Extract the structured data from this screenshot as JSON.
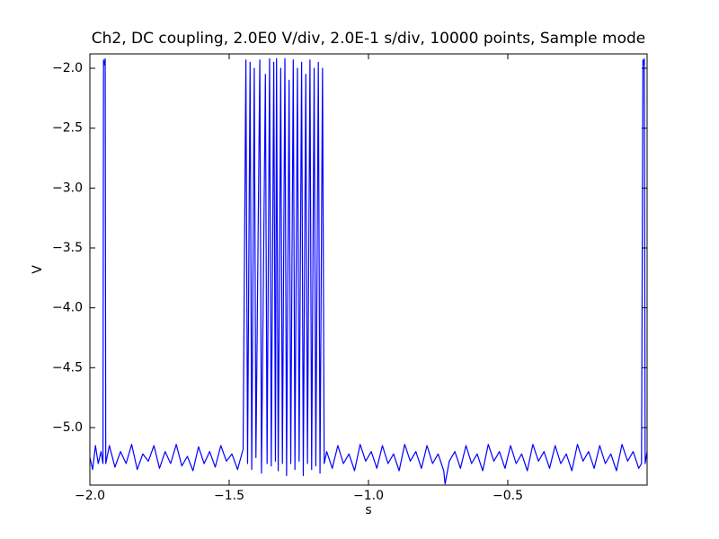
{
  "chart_data": {
    "type": "line",
    "title": "Ch2, DC coupling, 2.0E0 V/div, 2.0E-1 s/div, 10000 points, Sample mode",
    "x_label": "s",
    "y_label": "V",
    "color": "#0000ff",
    "xlim": [
      -2.0,
      0.0
    ],
    "ylim": [
      -5.48,
      -1.88
    ],
    "xticks": [
      {
        "value": -2.0,
        "label": "−2.0"
      },
      {
        "value": -1.5,
        "label": "−1.5"
      },
      {
        "value": -1.0,
        "label": "−1.0"
      },
      {
        "value": -0.5,
        "label": "−0.5"
      }
    ],
    "yticks": [
      {
        "value": -2.0,
        "label": "−2.0"
      },
      {
        "value": -2.5,
        "label": "−2.5"
      },
      {
        "value": -3.0,
        "label": "−3.0"
      },
      {
        "value": -3.5,
        "label": "−3.5"
      },
      {
        "value": -4.0,
        "label": "−4.0"
      },
      {
        "value": -4.5,
        "label": "−4.5"
      },
      {
        "value": -5.0,
        "label": "−5.0"
      }
    ],
    "x": [
      -2.0,
      -1.99,
      -1.98,
      -1.97,
      -1.96,
      -1.953,
      -1.951,
      -1.948,
      -1.945,
      -1.943,
      -1.93,
      -1.91,
      -1.89,
      -1.87,
      -1.85,
      -1.83,
      -1.81,
      -1.79,
      -1.77,
      -1.75,
      -1.73,
      -1.71,
      -1.69,
      -1.67,
      -1.65,
      -1.63,
      -1.61,
      -1.59,
      -1.57,
      -1.55,
      -1.53,
      -1.51,
      -1.49,
      -1.47,
      -1.45,
      -1.44,
      -1.434,
      -1.425,
      -1.419,
      -1.41,
      -1.404,
      -1.39,
      -1.384,
      -1.37,
      -1.364,
      -1.355,
      -1.349,
      -1.34,
      -1.334,
      -1.33,
      -1.324,
      -1.315,
      -1.309,
      -1.3,
      -1.294,
      -1.285,
      -1.279,
      -1.27,
      -1.264,
      -1.255,
      -1.249,
      -1.24,
      -1.234,
      -1.225,
      -1.219,
      -1.21,
      -1.204,
      -1.195,
      -1.189,
      -1.18,
      -1.174,
      -1.165,
      -1.159,
      -1.15,
      -1.13,
      -1.11,
      -1.09,
      -1.07,
      -1.05,
      -1.03,
      -1.01,
      -0.99,
      -0.97,
      -0.95,
      -0.93,
      -0.91,
      -0.89,
      -0.87,
      -0.85,
      -0.83,
      -0.81,
      -0.79,
      -0.77,
      -0.75,
      -0.73,
      -0.725,
      -0.71,
      -0.69,
      -0.67,
      -0.65,
      -0.63,
      -0.61,
      -0.59,
      -0.57,
      -0.55,
      -0.53,
      -0.51,
      -0.49,
      -0.47,
      -0.45,
      -0.43,
      -0.41,
      -0.39,
      -0.37,
      -0.35,
      -0.33,
      -0.31,
      -0.29,
      -0.27,
      -0.25,
      -0.23,
      -0.21,
      -0.19,
      -0.17,
      -0.15,
      -0.13,
      -0.11,
      -0.09,
      -0.07,
      -0.05,
      -0.03,
      -0.02,
      -0.015,
      -0.012,
      -0.01,
      -0.007,
      0.0
    ],
    "values": [
      -5.25,
      -5.35,
      -5.15,
      -5.3,
      -5.2,
      -5.3,
      -1.93,
      -1.97,
      -1.92,
      -5.3,
      -5.15,
      -5.33,
      -5.2,
      -5.3,
      -5.14,
      -5.35,
      -5.22,
      -5.28,
      -5.15,
      -5.34,
      -5.2,
      -5.3,
      -5.14,
      -5.32,
      -5.24,
      -5.36,
      -5.16,
      -5.3,
      -5.2,
      -5.33,
      -5.15,
      -5.28,
      -5.22,
      -5.35,
      -5.18,
      -1.93,
      -5.3,
      -1.95,
      -5.35,
      -2.0,
      -5.25,
      -1.93,
      -5.38,
      -2.05,
      -5.3,
      -1.92,
      -5.32,
      -1.95,
      -5.28,
      -1.92,
      -5.36,
      -2.0,
      -5.3,
      -1.92,
      -5.4,
      -2.1,
      -5.3,
      -1.93,
      -5.35,
      -2.0,
      -5.28,
      -1.95,
      -5.4,
      -2.05,
      -5.3,
      -1.93,
      -5.35,
      -2.0,
      -5.32,
      -1.95,
      -5.38,
      -2.0,
      -5.3,
      -5.2,
      -5.34,
      -5.15,
      -5.3,
      -5.22,
      -5.36,
      -5.14,
      -5.28,
      -5.2,
      -5.34,
      -5.15,
      -5.3,
      -5.22,
      -5.36,
      -5.14,
      -5.28,
      -5.2,
      -5.34,
      -5.15,
      -5.3,
      -5.22,
      -5.36,
      -5.47,
      -5.28,
      -5.2,
      -5.34,
      -5.15,
      -5.3,
      -5.22,
      -5.36,
      -5.14,
      -5.28,
      -5.2,
      -5.34,
      -5.15,
      -5.3,
      -5.22,
      -5.36,
      -5.14,
      -5.28,
      -5.2,
      -5.34,
      -5.15,
      -5.3,
      -5.22,
      -5.36,
      -5.14,
      -5.28,
      -5.2,
      -5.34,
      -5.15,
      -5.3,
      -5.22,
      -5.36,
      -5.14,
      -5.28,
      -5.2,
      -5.34,
      -5.3,
      -1.93,
      -1.97,
      -1.92,
      -5.3,
      -5.2
    ]
  }
}
